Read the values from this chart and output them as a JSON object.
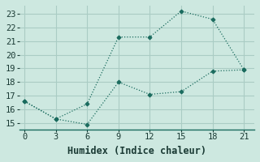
{
  "xlabel": "Humidex (Indice chaleur)",
  "background_color": "#cde8e0",
  "grid_color": "#aaccC4",
  "line_color": "#1a6b5e",
  "line1_x": [
    0,
    3,
    6,
    9,
    12,
    15,
    18,
    21
  ],
  "line1_y": [
    16.6,
    15.3,
    16.4,
    21.3,
    21.3,
    23.2,
    22.6,
    18.9
  ],
  "line2_x": [
    0,
    3,
    6,
    9,
    12,
    15,
    18,
    21
  ],
  "line2_y": [
    16.6,
    15.3,
    14.9,
    18.0,
    17.1,
    17.3,
    18.8,
    18.9
  ],
  "xlim": [
    -0.5,
    22
  ],
  "ylim": [
    14.5,
    23.6
  ],
  "xticks": [
    0,
    3,
    6,
    9,
    12,
    15,
    18,
    21
  ],
  "yticks": [
    15,
    16,
    17,
    18,
    19,
    20,
    21,
    22,
    23
  ],
  "tick_fontsize": 7.5,
  "xlabel_fontsize": 8.5
}
